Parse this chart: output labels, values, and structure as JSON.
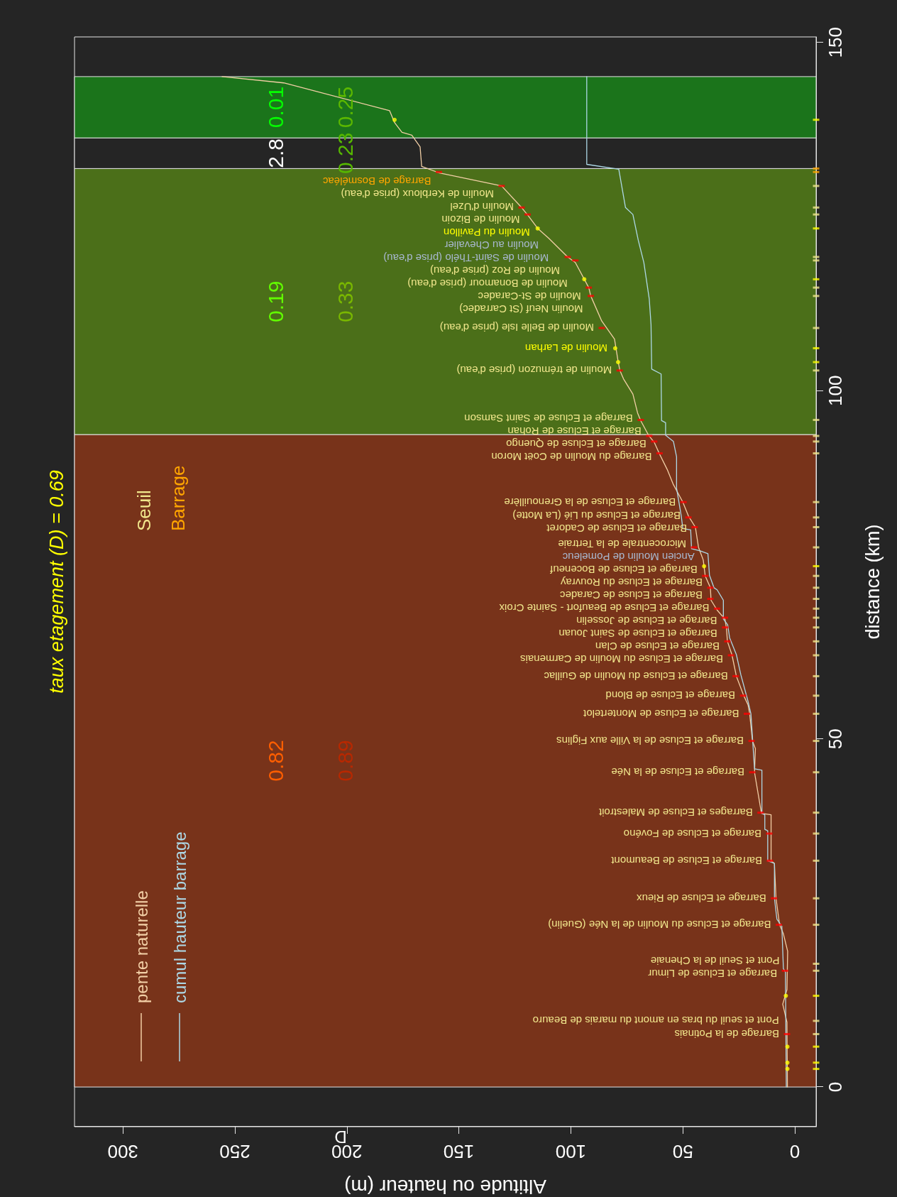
{
  "chart_data": {
    "type": "line",
    "title": "taux etagement (D) = 0.69",
    "xlabel": "Altitude ou hauteur (m)",
    "ylabel": "distance (km)",
    "xlim": [
      321.6,
      -9.5
    ],
    "xticks": [
      0,
      50,
      100,
      150,
      200,
      250,
      300
    ],
    "ylim": [
      -5.7,
      150.8
    ],
    "yticks": [
      0,
      50,
      100,
      150
    ],
    "legend": "bottom left",
    "bands": [
      {
        "axis": "y",
        "from": 0,
        "to": 93.7,
        "color": "#78331a"
      },
      {
        "axis": "y",
        "from": 93.7,
        "to": 131.9,
        "color": "#4b6f19"
      },
      {
        "axis": "y",
        "from": 131.9,
        "to": 136.3,
        "color": "#252525"
      },
      {
        "axis": "y",
        "from": 136.3,
        "to": 145.1,
        "color": "#1b741b"
      }
    ],
    "annotations": [
      "0.82",
      "0.89",
      "0.19",
      "0.33",
      "2.8",
      "0.23",
      "0.01",
      "0.25",
      "D",
      {
        "text": "Barrage de la Potinais",
        "x": 3.5,
        "y": 7.6
      },
      {
        "text": "Pont et seuil du bras en amont du marais de Beauro",
        "x": 3.6,
        "y": 9.5
      },
      {
        "text": "Barrage et Ecluse de Limur",
        "x": 4.4,
        "y": 16.7
      },
      {
        "text": "Pont et Seuil de la Chenaie",
        "x": 3.3,
        "y": 17.7
      },
      {
        "text": "Barrage et Ecluse du Moulin de la Née (Guelin)",
        "x": 7.1,
        "y": 23.3
      },
      {
        "text": "Barrage et Ecluse de Rieux",
        "x": 9.3,
        "y": 27.1
      },
      {
        "text": "Barrage et Ecluse de Beaumont",
        "x": 11.1,
        "y": 32.5
      },
      {
        "text": "Barrage et Ecluse de Fovéno",
        "x": 11.4,
        "y": 36.4
      },
      {
        "text": "Barrages et Ecluse de Malestroit",
        "x": 15.3,
        "y": 39.4
      },
      {
        "text": "Barrage et Ecluse de la Née",
        "x": 19,
        "y": 45.2
      },
      {
        "text": "Barrage et Ecluse de la Ville aux Figlins",
        "x": 19.3,
        "y": 49.7
      },
      {
        "text": "Barrage et Ecluse de Montertelot",
        "x": 21.4,
        "y": 53.6
      },
      {
        "text": "Barrage et Ecluse de Blond",
        "x": 23.1,
        "y": 56.2
      },
      {
        "text": "Barrage et Ecluse du Moulin de Guillac",
        "x": 26.4,
        "y": 59
      },
      {
        "text": "Barrage et Ecluse du Moulin de Carmenais",
        "x": 28.5,
        "y": 62
      },
      {
        "text": "Barrage et Ecluse de Clan",
        "x": 30.1,
        "y": 64
      },
      {
        "text": "Barrage et Ecluse de Saint Jouan",
        "x": 31.1,
        "y": 66
      },
      {
        "text": "Barrage et Ecluse de Josselin",
        "x": 31.2,
        "y": 67.4
      },
      {
        "text": "Barrage et Ecluse de Beaufort - Sainte Croix",
        "x": 34.7,
        "y": 68.7
      },
      {
        "text": "Barrage et Ecluse de Caradec",
        "x": 37.7,
        "y": 70.1
      },
      {
        "text": "Barrage et Ecluse du Rouvray",
        "x": 37.7,
        "y": 71.7
      },
      {
        "text": "Barrage et Ecluse de Boceneuf",
        "x": 40,
        "y": 73.4
      },
      {
        "text": "Ancien Moulin de Pomeleuc",
        "x": 41.3,
        "y": 76
      },
      {
        "text": "Microcentrale de la Tertraie",
        "x": 45,
        "y": 77.5
      },
      {
        "text": "Barrage et Ecluse de Cadoret",
        "x": 44.7,
        "y": 80.4
      },
      {
        "text": "Barrage et Ecluse du Lié (La Motte)",
        "x": 47.5,
        "y": 81.8
      },
      {
        "text": "Barrage et Ecluse de la Grenouillère",
        "x": 49.7,
        "y": 84
      },
      {
        "text": "Barrage du Moulin de Coët Moron",
        "x": 60.4,
        "y": 91
      },
      {
        "text": "Barrage et Ecluse de Quengo",
        "x": 62.8,
        "y": 92.7
      },
      {
        "text": "Barrage et Ecluse de Rohan",
        "x": 65,
        "y": 93.5
      },
      {
        "text": "Barrage et Ecluse de Saint Samson",
        "x": 68.8,
        "y": 95.8
      },
      {
        "text": "Moulin de trémuzon (prise d'eau)",
        "x": 78.2,
        "y": 102.9
      },
      {
        "text": "Moulin de Larhan",
        "x": 80.2,
        "y": 106.1
      },
      {
        "text": "Moulin de Belle Isle (prise d'eau)",
        "x": 86.2,
        "y": 109
      },
      {
        "text": "Moulin Neuf (St Carradec)",
        "x": 91.1,
        "y": 113.6
      },
      {
        "text": "Moulin de St-Caradec",
        "x": 92,
        "y": 114.8
      },
      {
        "text": "Moulin de Bonamour (prise d'eau)",
        "x": 98,
        "y": 118.7
      },
      {
        "text": "Moulin de Roz (prise d'eau)",
        "x": 101.4,
        "y": 119.2
      },
      {
        "text": "Moulin de Saint-Thélo (prise d'eau)",
        "x": 106.4,
        "y": 120.8
      },
      {
        "text": "Moulin au Chevalier",
        "x": 110.9,
        "y": 122.2
      },
      {
        "text": "Moulin du Pavillon",
        "x": 114.8,
        "y": 123.3
      },
      {
        "text": "Moulin de Bizoin",
        "x": 119.3,
        "y": 125.3
      },
      {
        "text": "Moulin d'Uzel",
        "x": 122,
        "y": 126.3
      },
      {
        "text": "Moulin de Kerbloux (prise d'eau)",
        "x": 130.9,
        "y": 129.4
      },
      {
        "text": "Barrage de Bosméléac",
        "x": 158.9,
        "y": 131.4
      }
    ],
    "series": [
      {
        "name": "pente naturelle",
        "color": "#f2cfa6",
        "x": [
          3.3,
          3.5,
          5.4,
          3.5,
          3.2,
          5.1,
          6.8,
          8.4,
          9.1,
          10.6,
          10.6,
          14.9,
          18,
          17.6,
          18.9,
          20.2,
          20.9,
          22.8,
          26.1,
          28.1,
          30.1,
          30.5,
          31.2,
          34.7,
          37.4,
          37.7,
          40,
          40.9,
          43,
          44.4,
          47.5,
          50,
          54.2,
          57,
          60.4,
          62.8,
          65.3,
          68.8,
          70.2,
          72.3,
          76.5,
          78.1,
          78.9,
          80.5,
          86.2,
          91.1,
          92,
          98,
          101.4,
          109.9,
          114.8,
          119.2,
          122,
          130.9,
          159,
          166.6,
          167.3,
          171,
          175.4,
          178.7,
          180.9,
          228.2,
          255.7
        ],
        "values": [
          0,
          9.3,
          11.9,
          14,
          19.5,
          22,
          23.3,
          27.1,
          32.1,
          32.5,
          39.1,
          39.3,
          45.2,
          48.6,
          49.7,
          53.7,
          54.9,
          56.2,
          59,
          62.1,
          64,
          65.8,
          67.2,
          68.5,
          69.9,
          71.7,
          73.4,
          75.7,
          77.5,
          80.4,
          82,
          84,
          86.5,
          88.7,
          90.9,
          92.6,
          93.6,
          95.7,
          96.8,
          99.5,
          101.7,
          102.9,
          104.2,
          107.4,
          110,
          113.6,
          114.8,
          118.4,
          119.2,
          121.9,
          123.3,
          125.2,
          126.3,
          129.4,
          131.3,
          132.2,
          135,
          136.7,
          137.1,
          138.5,
          140.2,
          144.2,
          145.1
        ]
      },
      {
        "name": "cumul hauteur barrage",
        "color": "#add8e6",
        "x": [
          3.8,
          4.2,
          5.1,
          5.8,
          8,
          9.1,
          9.1,
          12.1,
          12.1,
          13.4,
          13.4,
          14.7,
          14.7,
          18,
          19.6,
          20.9,
          24.1,
          26.1,
          29.1,
          30,
          31.9,
          31.9,
          34.7,
          36.1,
          38.1,
          38.8,
          42.3,
          46.1,
          46.5,
          50,
          50.7,
          52.8,
          52.8,
          54.2,
          57.7,
          57.7,
          59.5,
          59.7,
          63.9,
          64.2,
          65,
          67.4,
          69.9,
          72.3,
          75.6,
          78.6,
          92.9,
          92.9
        ],
        "values": [
          0,
          16.5,
          17,
          23.1,
          24.1,
          27.1,
          32.1,
          32.5,
          36.8,
          37,
          39.1,
          39.3,
          45.5,
          45.7,
          53.6,
          55.4,
          59.2,
          62.1,
          64.5,
          66.4,
          67.2,
          69.9,
          71.4,
          71.7,
          73.5,
          76.6,
          77,
          77.3,
          80,
          80.2,
          82,
          86,
          90.5,
          92.7,
          93.6,
          95.4,
          95.7,
          102.4,
          103.1,
          109.5,
          113.2,
          118.4,
          121.6,
          125.3,
          126.3,
          131.8,
          132.5,
          145.1
        ]
      },
      {
        "type": "scatter",
        "color": "#ff0000",
        "marker": "square",
        "x": [
          3.5,
          4.4,
          7.1,
          9.3,
          11.1,
          11.4,
          15.3,
          19,
          19.3,
          21.4,
          23.1,
          26.4,
          28.5,
          30.1,
          31.1,
          31.2,
          34.7,
          37.7,
          37.7,
          40,
          45,
          44.7,
          47.5,
          49.7,
          60.4,
          62.8,
          65,
          68.8,
          78.2,
          86.2,
          91.1,
          92,
          98,
          101.4,
          119.3,
          122,
          130.9,
          158.9
        ],
        "values": [
          7.6,
          16.7,
          23.3,
          27.1,
          32.5,
          36.4,
          39.4,
          45.2,
          49.7,
          53.6,
          56.2,
          59,
          62,
          64,
          66,
          67.4,
          68.7,
          70.1,
          71.7,
          73.4,
          77.5,
          80.4,
          81.8,
          84,
          91,
          92.7,
          93.5,
          95.8,
          102.9,
          109,
          113.6,
          114.8,
          118.7,
          119.2,
          125.3,
          126.3,
          129.4,
          131.4
        ]
      },
      {
        "type": "scatter",
        "color": "#ffff00",
        "marker": "circle",
        "x": [
          3.3,
          3.3,
          3.3,
          4,
          40.5,
          78.9,
          80.2,
          94,
          114.8,
          178.7
        ],
        "values": [
          2.6,
          3.5,
          5.8,
          13.1,
          74.8,
          104.1,
          106.1,
          116,
          123.3,
          138.9
        ]
      },
      {
        "name": "Seuil",
        "type": "scatter",
        "color": "#f0e68c",
        "marker": "square",
        "x": [
          -9.5,
          -9.5,
          -9.5,
          -9.5,
          -9.5,
          -9.5,
          -9.5,
          -9.5,
          -9.5,
          -9.5,
          -9.5,
          -9.5,
          -9.5,
          -9.5,
          -9.5,
          -9.5,
          -9.5,
          -9.5,
          -9.5,
          -9.5,
          -9.5,
          -9.5,
          -9.5,
          -9.5,
          -9.5,
          -9.5,
          -9.5,
          -9.5,
          -9.5,
          -9.5,
          -9.5,
          -9.5,
          -9.5,
          -9.5,
          -9.5,
          -9.5,
          -9.5,
          -9.5,
          -9.5
        ],
        "values": [
          7.6,
          9.5,
          16.7,
          17.7,
          23.3,
          27.1,
          32.5,
          36.4,
          39.4,
          45.2,
          49.7,
          53.6,
          56.2,
          59,
          62,
          64,
          66,
          67.4,
          68.7,
          70.1,
          71.7,
          73.4,
          77.5,
          80.4,
          81.8,
          84,
          91,
          92.7,
          93.5,
          95.8,
          102.9,
          109,
          113.6,
          114.8,
          118.7,
          119.2,
          125.3,
          126.3,
          129.4
        ]
      },
      {
        "name": "Barrage",
        "type": "scatter",
        "color": "#ffa500",
        "marker": "square",
        "x": [
          -9.5,
          -9.5
        ],
        "values": [
          131.4,
          131.9
        ]
      },
      {
        "type": "scatter",
        "color": "#ffff00",
        "marker": "square",
        "x": [
          -9.5,
          -9.5,
          -9.5,
          -9.5,
          -9.5,
          -9.5,
          -9.5,
          -9.5,
          -9.5,
          -9.5
        ],
        "values": [
          2.6,
          3.5,
          5.8,
          13.1,
          74.8,
          104.1,
          106.1,
          116,
          123.3,
          138.9
        ]
      }
    ]
  }
}
